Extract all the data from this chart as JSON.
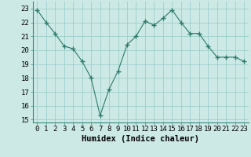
{
  "x": [
    0,
    1,
    2,
    3,
    4,
    5,
    6,
    7,
    8,
    9,
    10,
    11,
    12,
    13,
    14,
    15,
    16,
    17,
    18,
    19,
    20,
    21,
    22,
    23
  ],
  "y": [
    22.9,
    22.0,
    21.2,
    20.3,
    20.1,
    19.2,
    18.0,
    15.3,
    17.2,
    18.5,
    20.4,
    21.0,
    22.1,
    21.8,
    22.3,
    22.9,
    22.0,
    21.2,
    21.2,
    20.3,
    19.5,
    19.5,
    19.5,
    19.2
  ],
  "line_color": "#2d7a6a",
  "marker": "+",
  "marker_size": 4,
  "bg_color": "#cce9e6",
  "grid_color": "#9ecfca",
  "xlabel": "Humidex (Indice chaleur)",
  "xlim": [
    -0.5,
    23.5
  ],
  "ylim": [
    14.8,
    23.5
  ],
  "yticks": [
    15,
    16,
    17,
    18,
    19,
    20,
    21,
    22,
    23
  ],
  "xticks": [
    0,
    1,
    2,
    3,
    4,
    5,
    6,
    7,
    8,
    9,
    10,
    11,
    12,
    13,
    14,
    15,
    16,
    17,
    18,
    19,
    20,
    21,
    22,
    23
  ],
  "tick_fontsize": 6.5,
  "label_fontsize": 7.5
}
